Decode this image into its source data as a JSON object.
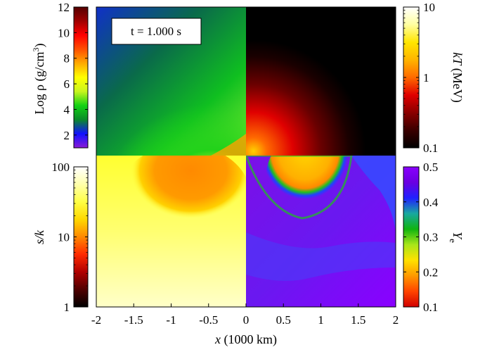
{
  "figure": {
    "time_label": "t = 1.000 s",
    "xaxis_label_var": "x",
    "xaxis_label_unit": "(1000 km)"
  },
  "chart_data": {
    "type": "heatmap",
    "xlabel": "x (1000 km)",
    "xlim": [
      -2,
      2
    ],
    "xticks": [
      "-2",
      "-1.5",
      "-1",
      "-0.5",
      "0",
      "0.5",
      "1",
      "1.5",
      "2"
    ],
    "quadrants": [
      {
        "position": "top-left",
        "quantity": "Log ρ (g/cm^3)"
      },
      {
        "position": "top-right",
        "quantity": "kT (MeV)"
      },
      {
        "position": "bottom-left",
        "quantity": "s/k"
      },
      {
        "position": "bottom-right",
        "quantity": "Y_e"
      }
    ],
    "colorbars": {
      "density": {
        "label_main": "Log ρ (g/cm",
        "label_sup": "3",
        "label_end": ")",
        "scale": "linear",
        "range": [
          1,
          12
        ],
        "ticks": [
          "12",
          "10",
          "8",
          "6",
          "4",
          "2"
        ],
        "colormap": [
          "#8a1ad6",
          "#1010ff",
          "#0a8a2a",
          "#12d212",
          "#c8f51e",
          "#ffff00",
          "#ffaa00",
          "#ff5000",
          "#ff0000",
          "#a00000",
          "#550000"
        ]
      },
      "temperature": {
        "label_var": "kT",
        "label_unit": "(MeV)",
        "scale": "log",
        "range": [
          0.1,
          10
        ],
        "ticks": [
          "10",
          "1",
          "0.1"
        ],
        "colormap": [
          "#000000",
          "#3a0000",
          "#8a0000",
          "#e00000",
          "#ff6a00",
          "#ffb400",
          "#ffe600",
          "#ffffa0",
          "#ffffff"
        ]
      },
      "entropy": {
        "label_var": "s/k",
        "scale": "log",
        "range": [
          1,
          100
        ],
        "ticks": [
          "100",
          "10",
          "1"
        ],
        "colormap": [
          "#000000",
          "#500000",
          "#b00000",
          "#ff2a00",
          "#ff8800",
          "#ffd800",
          "#ffff44",
          "#ffffaa",
          "#ffffff"
        ]
      },
      "electron_fraction": {
        "label_var": "Y",
        "label_sub": "e",
        "scale": "linear",
        "range": [
          0.1,
          0.5
        ],
        "ticks": [
          "0.5",
          "0.4",
          "0.3",
          "0.2",
          "0.1"
        ],
        "colormap": [
          "#d00000",
          "#ff4400",
          "#ff9900",
          "#ffe100",
          "#a8e61a",
          "#10b410",
          "#19a8a0",
          "#2020ff",
          "#6a00e0",
          "#8a00ff"
        ]
      }
    }
  }
}
